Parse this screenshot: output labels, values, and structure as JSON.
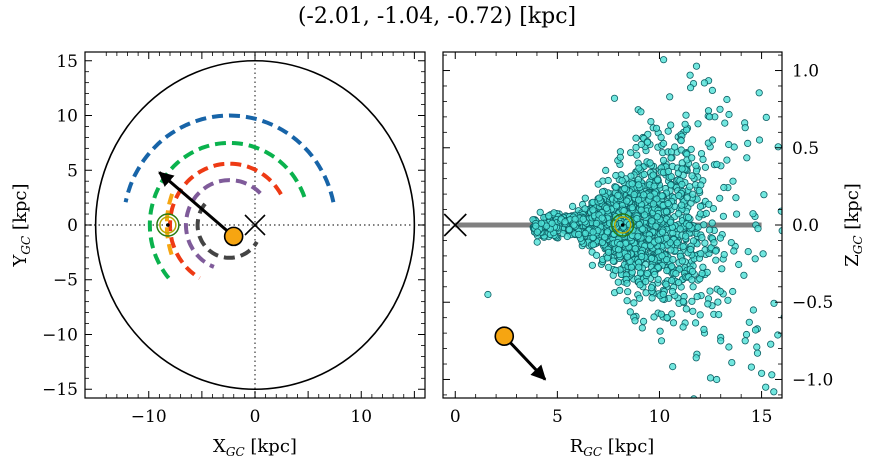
{
  "figure": {
    "title": "(-2.01, -1.04, -0.72) [kpc]"
  },
  "colors": {
    "arm_blue": "#1764a8",
    "arm_green": "#0ab24d",
    "arm_red": "#ee3a14",
    "arm_purple": "#7f5b9a",
    "arm_gray": "#444444",
    "star_orange": "#f6a511",
    "sun_ring": "#2a7a12",
    "scatter_fill": "#4fe1d7",
    "scatter_edge": "#0d5f64",
    "plane_line": "#808080",
    "circle": "#000000",
    "dotted": "#555555"
  },
  "chart_data": [
    {
      "type": "line",
      "panel": "left",
      "xlabel": "X",
      "xlabel_sub": "GC",
      "xlabel_unit": " [kpc]",
      "ylabel": "Y",
      "ylabel_sub": "GC",
      "ylabel_unit": " [kpc]",
      "xlim": [
        -16,
        16
      ],
      "ylim": [
        -15.8,
        15.8
      ],
      "xticks": [
        -10,
        -5,
        0,
        5,
        10,
        15
      ],
      "xticklabels": [
        "−10",
        "",
        "0",
        "",
        "10",
        ""
      ],
      "yticks": [
        -15,
        -10,
        -5,
        0,
        5,
        10,
        15
      ],
      "yticklabels": [
        "−15",
        "−10",
        "−5",
        "0",
        "5",
        "10",
        "15"
      ],
      "galaxy_circle_radius": 15,
      "spiral_arms": [
        {
          "color_key": "arm_blue",
          "radius": 10.0,
          "theta_start": 12,
          "theta_end": 168
        },
        {
          "color_key": "arm_green",
          "radius": 7.5,
          "theta_start": 20,
          "theta_end": 225
        },
        {
          "color_key": "arm_red",
          "radius": 5.6,
          "theta_start": 30,
          "theta_end": 240
        },
        {
          "color_key": "arm_purple",
          "radius": 4.1,
          "theta_start": 45,
          "theta_end": 250
        },
        {
          "color_key": "arm_gray",
          "radius": 3.0,
          "theta_start": 140,
          "theta_end": 330
        },
        {
          "color_key": "star_orange",
          "radius": 8.3,
          "theta_start": 160,
          "theta_end": 200
        }
      ],
      "galactic_center": {
        "x": 0,
        "y": 0
      },
      "sun": {
        "x": -8.2,
        "y": 0
      },
      "star": {
        "x": -2.01,
        "y": -1.04
      },
      "velocity_arrow": {
        "x0": -2.01,
        "y0": -1.04,
        "x1": -9.0,
        "y1": 4.8
      }
    },
    {
      "type": "scatter",
      "panel": "right",
      "xlabel": "R",
      "xlabel_sub": "GC",
      "xlabel_unit": " [kpc]",
      "ylabel": "Z",
      "ylabel_sub": "GC",
      "ylabel_unit": " [kpc]",
      "xlim": [
        -0.6,
        16.0
      ],
      "ylim": [
        -1.12,
        1.12
      ],
      "xticks": [
        0,
        5,
        10,
        15
      ],
      "xticklabels": [
        "0",
        "5",
        "10",
        "15"
      ],
      "yticks": [
        -1.0,
        -0.5,
        0.0,
        0.5,
        1.0
      ],
      "yticklabels": [
        "−1.0",
        "−0.5",
        "0.0",
        "0.5",
        "1.0"
      ],
      "galactic_plane": {
        "x0": 0,
        "x1": 15,
        "y": 0
      },
      "galactic_center": {
        "x": 0,
        "y": 0
      },
      "sun": {
        "x": 8.2,
        "y": 0
      },
      "star": {
        "x": 2.4,
        "y": -0.72
      },
      "velocity_arrow": {
        "x0": 2.4,
        "y0": -0.72,
        "x1": 4.4,
        "y1": -1.0
      },
      "cloud": {
        "n": 1800,
        "r_center": 8.6,
        "r_spread_inner": 1.8,
        "r_spread_outer": 2.6,
        "z_spread_min": 0.04,
        "z_spread_growth": 0.06
      },
      "outliers": [
        {
          "x": 10.2,
          "y": 1.07
        },
        {
          "x": 11.5,
          "y": 0.97
        },
        {
          "x": 12.2,
          "y": 0.92
        },
        {
          "x": 7.8,
          "y": 0.82
        },
        {
          "x": 10.5,
          "y": 0.83
        },
        {
          "x": 12.4,
          "y": 0.74
        },
        {
          "x": 13.2,
          "y": 0.66
        },
        {
          "x": 14.2,
          "y": 0.63
        },
        {
          "x": 14.9,
          "y": 0.55
        },
        {
          "x": 14.6,
          "y": -0.55
        },
        {
          "x": 14.4,
          "y": -0.63
        },
        {
          "x": 14.7,
          "y": -0.68
        },
        {
          "x": 14.2,
          "y": -0.75
        },
        {
          "x": 14.8,
          "y": -0.83
        },
        {
          "x": 14.5,
          "y": -0.92
        },
        {
          "x": 15.0,
          "y": -0.96
        },
        {
          "x": 15.5,
          "y": -0.97
        },
        {
          "x": 15.2,
          "y": -1.05
        },
        {
          "x": 15.6,
          "y": -1.08
        },
        {
          "x": 12.5,
          "y": -0.99
        },
        {
          "x": 12.8,
          "y": -1.0
        },
        {
          "x": 11.8,
          "y": -0.86
        },
        {
          "x": 13.0,
          "y": -0.75
        },
        {
          "x": 8.8,
          "y": -0.62
        },
        {
          "x": 10.1,
          "y": -0.75
        },
        {
          "x": 1.6,
          "y": -0.45
        },
        {
          "x": 13.4,
          "y": -0.79
        },
        {
          "x": 12.9,
          "y": -0.58
        },
        {
          "x": 13.3,
          "y": 0.42
        },
        {
          "x": 12.6,
          "y": 0.55
        }
      ]
    }
  ]
}
